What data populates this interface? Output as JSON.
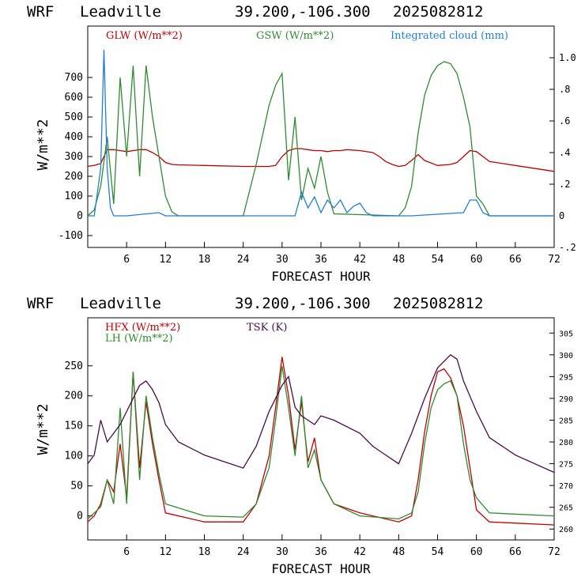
{
  "panels": [
    {
      "header": {
        "model": "WRF",
        "location": "Leadville",
        "coords": "39.200,-106.300",
        "init": "2025082812"
      },
      "ylabel": "W/m**2",
      "xlabel": "FORECAST HOUR",
      "legend": [
        {
          "text": "GLW (W/m**2)",
          "color": "#c00000"
        },
        {
          "text": "GSW (W/m**2)",
          "color": "#2e8b2e"
        },
        {
          "text": "Integrated cloud (mm)",
          "color": "#1e7fd8"
        }
      ],
      "left_ticks": [
        "-100",
        "0",
        "100",
        "200",
        "300",
        "400",
        "500",
        "600",
        "700"
      ],
      "right_ticks": [
        "-.2",
        "0",
        ".2",
        ".4",
        ".6",
        ".8",
        "1.0"
      ],
      "x_ticks": [
        "6",
        "12",
        "18",
        "24",
        "30",
        "36",
        "42",
        "48",
        "54",
        "60",
        "66",
        "72"
      ]
    },
    {
      "header": {
        "model": "WRF",
        "location": "Leadville",
        "coords": "39.200,-106.300",
        "init": "2025082812"
      },
      "ylabel": "W/m**2",
      "xlabel": "FORECAST HOUR",
      "legend": [
        {
          "text": "HFX (W/m**2)",
          "color": "#c00000"
        },
        {
          "text": "LH  (W/m**2)",
          "color": "#2e8b2e"
        },
        {
          "text": "TSK (K)",
          "color": "#4b0a4b"
        }
      ],
      "left_ticks": [
        "0",
        "50",
        "100",
        "150",
        "200",
        "250"
      ],
      "right_ticks": [
        "260",
        "265",
        "270",
        "275",
        "280",
        "285",
        "290",
        "295",
        "300",
        "305"
      ],
      "x_ticks": [
        "6",
        "12",
        "18",
        "24",
        "30",
        "36",
        "42",
        "48",
        "54",
        "60",
        "66",
        "72"
      ]
    }
  ],
  "chart_data": [
    {
      "type": "line",
      "xlim": [
        0,
        72
      ],
      "ylim": [
        -160,
        960
      ],
      "y2lim": [
        -0.2,
        1.2
      ],
      "xlabel": "FORECAST HOUR",
      "ylabel": "W/m**2",
      "series": [
        {
          "name": "GLW (W/m**2)",
          "color": "#c00000",
          "axis": "left",
          "x": [
            0,
            1,
            2,
            3,
            4,
            5,
            6,
            7,
            8,
            9,
            10,
            11,
            12,
            13,
            14,
            18,
            24,
            28,
            29,
            30,
            31,
            32,
            33,
            34,
            35,
            36,
            37,
            38,
            39,
            40,
            42,
            44,
            45,
            46,
            47,
            48,
            49,
            50,
            51,
            52,
            54,
            56,
            57,
            58,
            59,
            60,
            61,
            62,
            66,
            72
          ],
          "y": [
            250,
            255,
            265,
            335,
            335,
            330,
            325,
            330,
            335,
            335,
            320,
            300,
            270,
            260,
            258,
            255,
            250,
            250,
            255,
            300,
            330,
            340,
            340,
            335,
            330,
            330,
            325,
            330,
            330,
            335,
            330,
            320,
            300,
            275,
            260,
            250,
            255,
            280,
            310,
            280,
            255,
            260,
            270,
            300,
            330,
            325,
            300,
            275,
            255,
            225
          ]
        },
        {
          "name": "GSW (W/m**2)",
          "color": "#2e8b2e",
          "axis": "left",
          "x": [
            0,
            1,
            2,
            3,
            4,
            5,
            6,
            7,
            8,
            9,
            10,
            11,
            12,
            13,
            14,
            24,
            26,
            28,
            29,
            30,
            31,
            32,
            33,
            34,
            35,
            36,
            37,
            38,
            48,
            49,
            50,
            51,
            52,
            53,
            54,
            55,
            56,
            57,
            58,
            59,
            60,
            61,
            62,
            72
          ],
          "y": [
            0,
            30,
            150,
            400,
            60,
            700,
            300,
            760,
            200,
            760,
            500,
            300,
            100,
            20,
            0,
            0,
            260,
            560,
            660,
            720,
            180,
            500,
            80,
            240,
            140,
            300,
            120,
            10,
            0,
            40,
            150,
            420,
            610,
            710,
            760,
            780,
            770,
            720,
            600,
            450,
            100,
            60,
            0,
            0
          ]
        },
        {
          "name": "Integrated cloud (mm)",
          "color": "#1e7fd8",
          "axis": "right",
          "x": [
            0,
            1,
            2,
            2.5,
            3,
            3.5,
            4,
            6,
            11,
            12,
            24,
            32,
            33,
            34,
            35,
            36,
            37,
            38,
            39,
            40,
            41,
            42,
            43,
            44,
            50,
            58,
            59,
            60,
            61,
            62,
            72
          ],
          "y": [
            0,
            0,
            0.3,
            1.05,
            0.3,
            0.05,
            0,
            0,
            0.02,
            0,
            0,
            0,
            0.15,
            0.05,
            0.12,
            0.02,
            0.1,
            0.05,
            0.1,
            0.02,
            0.06,
            0.08,
            0.02,
            0,
            0,
            0.02,
            0.1,
            0.1,
            0.02,
            0,
            0
          ]
        }
      ]
    },
    {
      "type": "line",
      "xlim": [
        0,
        72
      ],
      "ylim": [
        -40,
        330
      ],
      "y2lim": [
        257.5,
        308.5
      ],
      "xlabel": "FORECAST HOUR",
      "ylabel": "W/m**2",
      "series": [
        {
          "name": "HFX (W/m**2)",
          "color": "#c00000",
          "axis": "left",
          "x": [
            0,
            1,
            2,
            3,
            4,
            5,
            6,
            7,
            8,
            9,
            10,
            11,
            12,
            18,
            24,
            26,
            28,
            29,
            30,
            31,
            32,
            33,
            34,
            35,
            36,
            38,
            42,
            48,
            50,
            51,
            52,
            53,
            54,
            55,
            56,
            57,
            58,
            59,
            60,
            62,
            72
          ],
          "y": [
            -10,
            0,
            20,
            60,
            40,
            120,
            30,
            240,
            80,
            190,
            120,
            60,
            5,
            -10,
            -10,
            20,
            100,
            180,
            265,
            200,
            110,
            190,
            90,
            130,
            60,
            20,
            5,
            -10,
            0,
            60,
            140,
            200,
            240,
            245,
            230,
            200,
            150,
            80,
            10,
            -10,
            -15
          ]
        },
        {
          "name": "LH  (W/m**2)",
          "color": "#2e8b2e",
          "axis": "left",
          "x": [
            0,
            1,
            2,
            3,
            4,
            5,
            6,
            7,
            8,
            9,
            10,
            11,
            12,
            18,
            24,
            26,
            28,
            29,
            30,
            31,
            32,
            33,
            34,
            35,
            36,
            38,
            42,
            48,
            50,
            51,
            52,
            53,
            54,
            55,
            56,
            57,
            58,
            59,
            60,
            62,
            72
          ],
          "y": [
            -5,
            5,
            15,
            60,
            20,
            180,
            20,
            240,
            60,
            200,
            130,
            70,
            20,
            0,
            -2,
            20,
            80,
            160,
            250,
            180,
            100,
            200,
            80,
            110,
            60,
            20,
            0,
            -5,
            5,
            40,
            120,
            180,
            210,
            220,
            225,
            200,
            120,
            60,
            30,
            5,
            0
          ]
        },
        {
          "name": "TSK (K)",
          "color": "#4b0a4b",
          "axis": "right",
          "x": [
            0,
            1,
            2,
            3,
            4,
            5,
            6,
            7,
            8,
            9,
            10,
            11,
            12,
            14,
            18,
            24,
            26,
            28,
            30,
            31,
            32,
            33,
            34,
            35,
            36,
            38,
            42,
            44,
            46,
            48,
            50,
            52,
            54,
            56,
            57,
            58,
            60,
            62,
            66,
            72
          ],
          "y": [
            275,
            277,
            285,
            280,
            282,
            284,
            287,
            290,
            293,
            294,
            292,
            289,
            284,
            280,
            277,
            274,
            279,
            287,
            293,
            295,
            288,
            286,
            285,
            284,
            286,
            285,
            282,
            279,
            277,
            275,
            282,
            290,
            297,
            300,
            299,
            294,
            287,
            281,
            277,
            273
          ]
        }
      ]
    }
  ]
}
